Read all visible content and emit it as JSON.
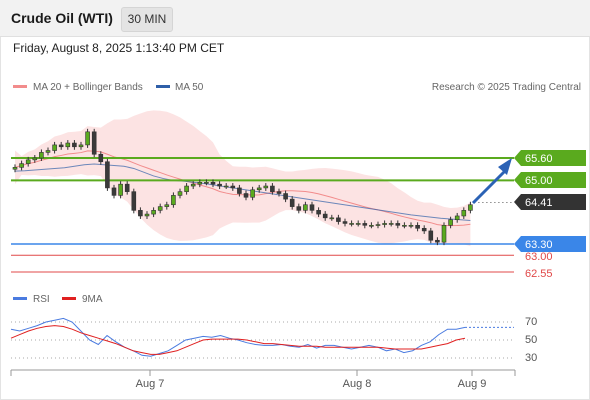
{
  "header": {
    "title": "Crude Oil (WTI)",
    "interval": "30 MIN",
    "timestamp": "Friday, August 8, 2025 1:13:40 PM CET"
  },
  "colors": {
    "ma20": "#f28c8c",
    "ma50": "#2f5fa8",
    "resistance": "#5aaa1e",
    "current": "#333333",
    "support": "#3a86e8",
    "support2": "#e04848",
    "arrow": "#2b62b5",
    "rsi": "#4a7be0",
    "rsi_ma": "#e02020"
  },
  "legend": {
    "ma20_label": "MA 20 + Bollinger Bands",
    "ma50_label": "MA 50",
    "copyright": "Research © 2025 Trading Central"
  },
  "levels": [
    {
      "value": "65.60",
      "kind": "resistance"
    },
    {
      "value": "65.00",
      "kind": "resistance"
    },
    {
      "value": "64.41",
      "kind": "current"
    },
    {
      "value": "63.30",
      "kind": "support"
    },
    {
      "value": "63.00",
      "kind": "support2"
    },
    {
      "value": "62.55",
      "kind": "support2"
    }
  ],
  "rsi_legend": {
    "rsi_label": "RSI",
    "ma_label": "9MA"
  },
  "rsi_ticks": [
    "70",
    "50",
    "30"
  ],
  "x_labels": [
    "Aug 7",
    "Aug 8",
    "Aug 9"
  ],
  "chart_data": {
    "type": "candlestick",
    "price_axis_labels": [
      65.6,
      65.0,
      64.41,
      63.3,
      63.0,
      62.55
    ],
    "close": [
      65.35,
      65.45,
      65.55,
      65.6,
      65.75,
      65.8,
      65.95,
      65.9,
      66.0,
      65.9,
      65.95,
      66.3,
      65.7,
      65.5,
      64.8,
      64.6,
      64.9,
      64.7,
      64.2,
      64.05,
      64.1,
      64.2,
      64.3,
      64.35,
      64.6,
      64.7,
      64.85,
      64.9,
      64.95,
      64.95,
      64.9,
      64.85,
      64.85,
      64.8,
      64.65,
      64.55,
      64.75,
      64.8,
      64.85,
      64.7,
      64.65,
      64.5,
      64.3,
      64.2,
      64.35,
      64.2,
      64.1,
      64.0,
      64.0,
      63.9,
      63.85,
      63.85,
      63.85,
      63.8,
      63.8,
      63.82,
      63.85,
      63.85,
      63.8,
      63.8,
      63.8,
      63.72,
      63.65,
      63.4,
      63.35,
      63.8,
      63.95,
      64.05,
      64.2,
      64.35
    ],
    "ma50": [
      65.25,
      65.26,
      65.28,
      65.3,
      65.32,
      65.34,
      65.38,
      65.42,
      65.44,
      65.42,
      65.4,
      65.38,
      65.32,
      65.22,
      65.12,
      65.05,
      65.0,
      64.98,
      64.95,
      64.92,
      64.88,
      64.84,
      64.8,
      64.76,
      64.72,
      64.68,
      64.64,
      64.6,
      64.56,
      64.52,
      64.48,
      64.44,
      64.4,
      64.36,
      64.32,
      64.28,
      64.24,
      64.2,
      64.16,
      64.12,
      64.08,
      64.05,
      64.02,
      63.99,
      63.97,
      63.95,
      63.93
    ],
    "rsi": [
      62,
      60,
      63,
      66,
      70,
      72,
      74,
      70,
      60,
      50,
      45,
      55,
      48,
      42,
      38,
      33,
      32,
      35,
      38,
      44,
      50,
      52,
      54,
      53,
      55,
      52,
      50,
      47,
      45,
      44,
      44,
      45,
      43,
      42,
      45,
      41,
      44,
      44,
      42,
      40,
      42,
      44,
      42,
      38,
      40,
      36,
      38,
      44,
      48,
      56,
      62,
      62,
      64
    ],
    "rsi_ma": [
      52,
      56,
      60,
      63,
      65,
      66,
      65,
      62,
      58,
      55,
      52,
      49,
      46,
      42,
      38,
      36,
      34,
      34,
      36,
      38,
      42,
      46,
      50,
      51,
      51,
      51,
      51,
      50,
      48,
      46,
      46,
      45,
      44,
      43,
      43,
      43,
      42,
      42,
      42,
      42,
      42,
      42,
      42,
      41,
      40,
      40,
      40,
      40,
      42,
      44,
      46,
      50,
      52
    ],
    "rsi_axis": [
      70,
      50,
      30
    ],
    "x_tick_labels": [
      "Aug 7",
      "Aug 8",
      "Aug 9"
    ],
    "legend": [
      "MA 20 + Bollinger Bands",
      "MA 50"
    ]
  }
}
